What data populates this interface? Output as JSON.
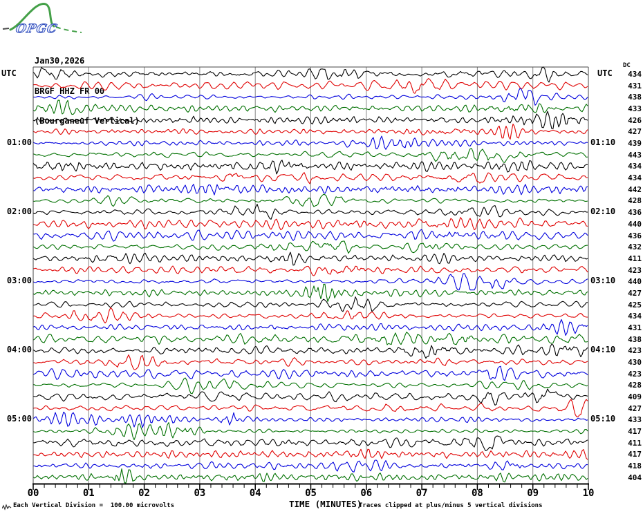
{
  "logo": {
    "text": "OPGC"
  },
  "title": {
    "date": "Jan30,2026",
    "station": "BRGF HHZ FR 00",
    "location": "(Bourganeuf Vertical)"
  },
  "axes": {
    "left_header": "UTC",
    "right_header": "UTC",
    "dc_header": "DC",
    "x_label": "TIME (MINUTES)",
    "x_ticks": [
      "00",
      "01",
      "02",
      "03",
      "04",
      "05",
      "06",
      "07",
      "08",
      "09",
      "10"
    ]
  },
  "footer": {
    "scale_note": "Each Vertical Division =  100.00 microvolts",
    "clip_note": "Traces clipped at plus/minus 5 vertical divisions"
  },
  "colors": {
    "background": "#ffffff",
    "grid": "#858585",
    "border": "#444444",
    "axis": "#000000",
    "trace_cycle": {
      "black": "#000000",
      "red": "#e00000",
      "blue": "#0000dd",
      "green": "#007000"
    },
    "logo_green": "#44a048",
    "logo_blue": "#3a56c0"
  },
  "chart_data": {
    "type": "line",
    "subtype": "helicorder-seismogram",
    "x_unit": "minutes",
    "x_range": [
      0,
      10
    ],
    "minutes_per_row": 10,
    "rows_per_hour": 6,
    "rows": [
      {
        "utc_start": "00:00",
        "left_label": "",
        "right_label": "",
        "dc": 434,
        "color": "black"
      },
      {
        "utc_start": "00:10",
        "left_label": "",
        "right_label": "",
        "dc": 431,
        "color": "red"
      },
      {
        "utc_start": "00:20",
        "left_label": "",
        "right_label": "",
        "dc": 438,
        "color": "blue"
      },
      {
        "utc_start": "00:30",
        "left_label": "",
        "right_label": "",
        "dc": 433,
        "color": "green"
      },
      {
        "utc_start": "00:40",
        "left_label": "",
        "right_label": "",
        "dc": 426,
        "color": "black"
      },
      {
        "utc_start": "00:50",
        "left_label": "",
        "right_label": "",
        "dc": 427,
        "color": "red"
      },
      {
        "utc_start": "01:00",
        "left_label": "01:00",
        "right_label": "01:10",
        "dc": 439,
        "color": "blue"
      },
      {
        "utc_start": "01:10",
        "left_label": "",
        "right_label": "",
        "dc": 443,
        "color": "green"
      },
      {
        "utc_start": "01:20",
        "left_label": "",
        "right_label": "",
        "dc": 434,
        "color": "black"
      },
      {
        "utc_start": "01:30",
        "left_label": "",
        "right_label": "",
        "dc": 434,
        "color": "red"
      },
      {
        "utc_start": "01:40",
        "left_label": "",
        "right_label": "",
        "dc": 442,
        "color": "blue"
      },
      {
        "utc_start": "01:50",
        "left_label": "",
        "right_label": "",
        "dc": 428,
        "color": "green"
      },
      {
        "utc_start": "02:00",
        "left_label": "02:00",
        "right_label": "02:10",
        "dc": 436,
        "color": "black"
      },
      {
        "utc_start": "02:10",
        "left_label": "",
        "right_label": "",
        "dc": 440,
        "color": "red"
      },
      {
        "utc_start": "02:20",
        "left_label": "",
        "right_label": "",
        "dc": 436,
        "color": "blue"
      },
      {
        "utc_start": "02:30",
        "left_label": "",
        "right_label": "",
        "dc": 432,
        "color": "green"
      },
      {
        "utc_start": "02:40",
        "left_label": "",
        "right_label": "",
        "dc": 411,
        "color": "black"
      },
      {
        "utc_start": "02:50",
        "left_label": "",
        "right_label": "",
        "dc": 423,
        "color": "red"
      },
      {
        "utc_start": "03:00",
        "left_label": "03:00",
        "right_label": "03:10",
        "dc": 440,
        "color": "blue"
      },
      {
        "utc_start": "03:10",
        "left_label": "",
        "right_label": "",
        "dc": 427,
        "color": "green"
      },
      {
        "utc_start": "03:20",
        "left_label": "",
        "right_label": "",
        "dc": 425,
        "color": "black"
      },
      {
        "utc_start": "03:30",
        "left_label": "",
        "right_label": "",
        "dc": 434,
        "color": "red"
      },
      {
        "utc_start": "03:40",
        "left_label": "",
        "right_label": "",
        "dc": 431,
        "color": "blue"
      },
      {
        "utc_start": "03:50",
        "left_label": "",
        "right_label": "",
        "dc": 438,
        "color": "green"
      },
      {
        "utc_start": "04:00",
        "left_label": "04:00",
        "right_label": "04:10",
        "dc": 423,
        "color": "black"
      },
      {
        "utc_start": "04:10",
        "left_label": "",
        "right_label": "",
        "dc": 430,
        "color": "red"
      },
      {
        "utc_start": "04:20",
        "left_label": "",
        "right_label": "",
        "dc": 423,
        "color": "blue"
      },
      {
        "utc_start": "04:30",
        "left_label": "",
        "right_label": "",
        "dc": 428,
        "color": "green"
      },
      {
        "utc_start": "04:40",
        "left_label": "",
        "right_label": "",
        "dc": 409,
        "color": "black"
      },
      {
        "utc_start": "04:50",
        "left_label": "",
        "right_label": "",
        "dc": 427,
        "color": "red"
      },
      {
        "utc_start": "05:00",
        "left_label": "05:00",
        "right_label": "05:10",
        "dc": 433,
        "color": "blue"
      },
      {
        "utc_start": "05:10",
        "left_label": "",
        "right_label": "",
        "dc": 417,
        "color": "green"
      },
      {
        "utc_start": "05:20",
        "left_label": "",
        "right_label": "",
        "dc": 411,
        "color": "black"
      },
      {
        "utc_start": "05:30",
        "left_label": "",
        "right_label": "",
        "dc": 417,
        "color": "red"
      },
      {
        "utc_start": "05:40",
        "left_label": "",
        "right_label": "",
        "dc": 418,
        "color": "blue"
      },
      {
        "utc_start": "05:50",
        "left_label": "",
        "right_label": "",
        "dc": 404,
        "color": "green"
      }
    ]
  }
}
